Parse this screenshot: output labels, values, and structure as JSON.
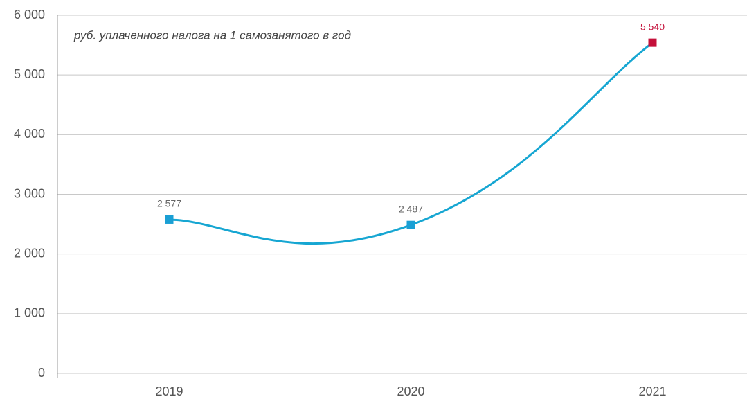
{
  "chart_data": {
    "type": "line",
    "annotation": "руб. уплаченного налога на 1 самозанятого в год",
    "categories": [
      "2019",
      "2020",
      "2021"
    ],
    "values": [
      2577,
      2487,
      5540
    ],
    "value_labels": [
      "2 577",
      "2 487",
      "5 540"
    ],
    "color": "#16a6d2",
    "point_colors": [
      "#1a9fd4",
      "#1a9fd4",
      "#c4103a"
    ],
    "value_label_colors": [
      "#666666",
      "#666666",
      "#c4103a"
    ],
    "ylim": [
      0,
      6000
    ],
    "yticks": [
      0,
      {
        "value": 1000,
        "label": "1 000"
      },
      {
        "value": 2000,
        "label": "2 000"
      },
      {
        "value": 3000,
        "label": "3 000"
      },
      {
        "value": 4000,
        "label": "4 000"
      },
      {
        "value": 5000,
        "label": "5 000"
      },
      {
        "value": 6000,
        "label": "6 000"
      }
    ],
    "grid": true
  }
}
